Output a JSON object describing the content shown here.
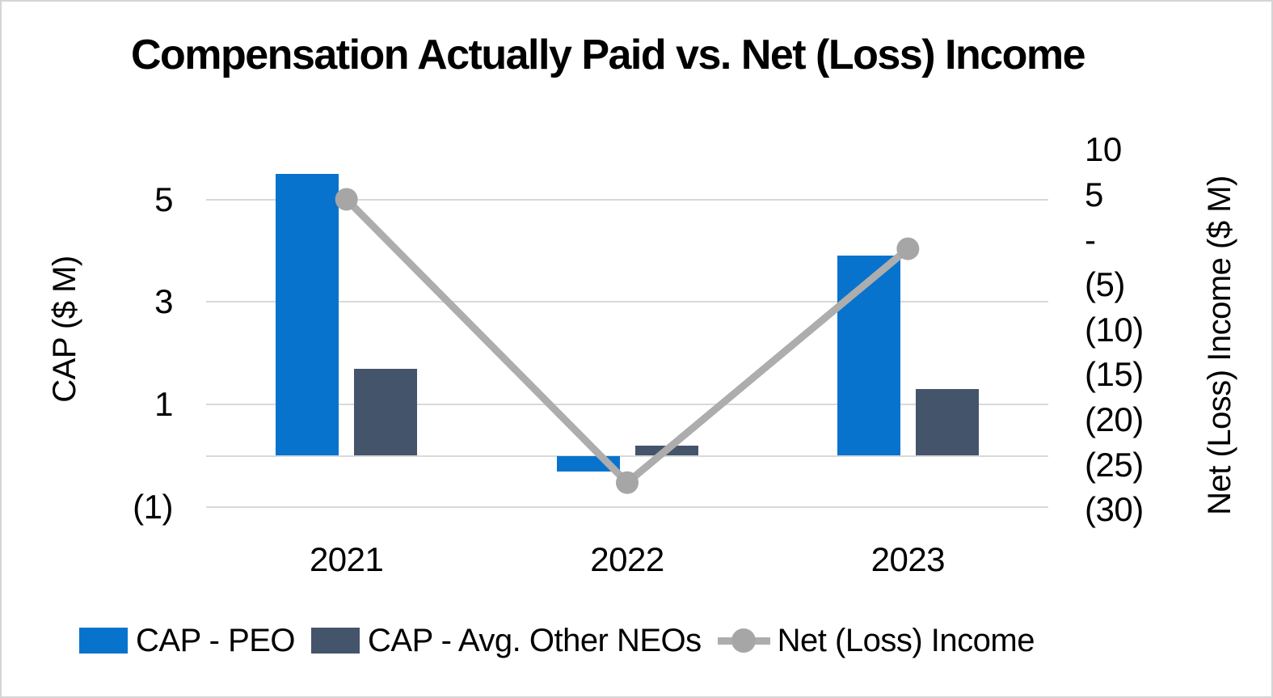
{
  "chart_data": {
    "type": "combo-bar-line",
    "title": "Compensation Actually Paid vs. Net (Loss) Income",
    "categories": [
      "2021",
      "2022",
      "2023"
    ],
    "bar_series": [
      {
        "name": "CAP - PEO",
        "color": "#0873CD",
        "axis": "left",
        "values": [
          5.5,
          -0.3,
          3.9
        ]
      },
      {
        "name": "CAP - Avg. Other NEOs",
        "color": "#44546A",
        "axis": "left",
        "values": [
          1.7,
          0.2,
          1.3
        ]
      }
    ],
    "line_series": [
      {
        "name": "Net (Loss) Income",
        "line_color": "#ADADAD",
        "marker_color": "#A6A6A6",
        "marker": "circle",
        "axis": "right",
        "values": [
          4.5,
          -27,
          -1
        ]
      }
    ],
    "left_axis": {
      "title": "CAP ($ M)",
      "ticks": [
        {
          "label": "5",
          "value": 5
        },
        {
          "label": "3",
          "value": 3
        },
        {
          "label": "1",
          "value": 1
        },
        {
          "label": "(1)",
          "value": -1
        }
      ],
      "axis_line_value": 0
    },
    "right_axis": {
      "title": "Net (Loss) Income ($ M)",
      "ticks": [
        {
          "label": "10",
          "value": 10
        },
        {
          "label": "5",
          "value": 5
        },
        {
          "label": "-",
          "value": 0
        },
        {
          "label": "(5)",
          "value": -5
        },
        {
          "label": "(10)",
          "value": -10
        },
        {
          "label": "(15)",
          "value": -15
        },
        {
          "label": "(20)",
          "value": -20
        },
        {
          "label": "(25)",
          "value": -25
        },
        {
          "label": "(30)",
          "value": -30
        }
      ]
    },
    "legend_position": "bottom",
    "grid": "horizontal",
    "negative_format": "parentheses",
    "gridline_color": "#D9D9D9",
    "background": "#FFFFFF",
    "border_color": "#D5D5D5",
    "text_color": "#000000"
  }
}
